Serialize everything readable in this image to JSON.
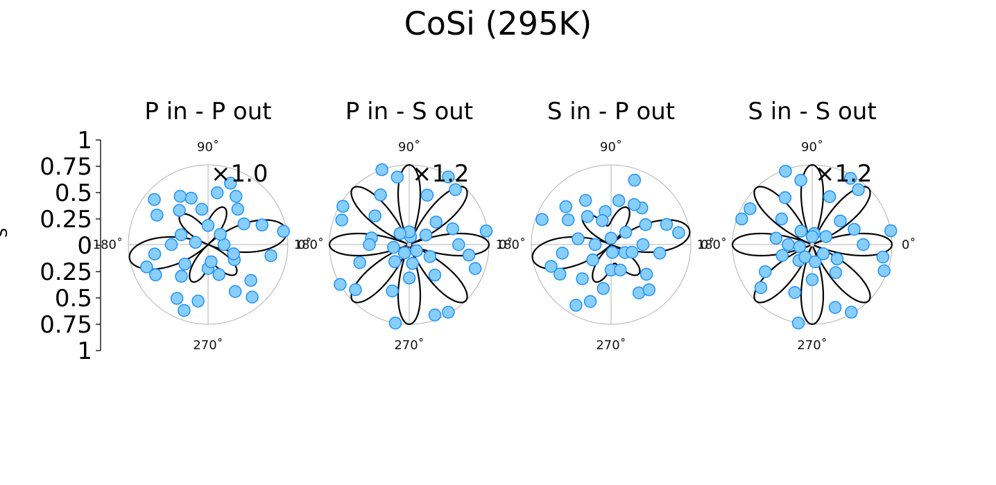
{
  "figure": {
    "title": "CoSi (295K)",
    "ylabel": "S"
  },
  "colors": {
    "marker_fill": "#87cefa",
    "marker_edge": "#1e90ff",
    "fit_line": "#000000",
    "grid": "#b0b0b0"
  },
  "chart_data": {
    "type": "polar-scatter",
    "radial_axis": {
      "ticks": [
        "1",
        "0.75",
        "0.5",
        "0.25",
        "0",
        "0.25",
        "0.5",
        "0.75",
        "1"
      ],
      "range": [
        0,
        1
      ]
    },
    "angle_ticks": [
      "0˚",
      "90˚",
      "180˚",
      "270˚"
    ],
    "grid": true,
    "panels": [
      {
        "title": "P in - P out",
        "scale_label": "×1.0",
        "petals": 8,
        "model": {
          "const": 0.0,
          "amp4": 0.62,
          "amp8": 0.38,
          "phase_deg": 10
        },
        "points": [
          {
            "theta": 0,
            "r": 0.2
          },
          {
            "theta": 10,
            "r": 0.96
          },
          {
            "theta": 20,
            "r": 0.72
          },
          {
            "theta": 30,
            "r": 0.52
          },
          {
            "theta": 40,
            "r": 0.2
          },
          {
            "theta": 50,
            "r": 0.58
          },
          {
            "theta": 60,
            "r": 0.7
          },
          {
            "theta": 70,
            "r": 0.82
          },
          {
            "theta": 80,
            "r": 0.66
          },
          {
            "theta": 90,
            "r": 0.24
          },
          {
            "theta": 100,
            "r": 0.45
          },
          {
            "theta": 110,
            "r": 0.62
          },
          {
            "theta": 120,
            "r": 0.7
          },
          {
            "theta": 130,
            "r": 0.56
          },
          {
            "theta": 140,
            "r": 0.88
          },
          {
            "theta": 150,
            "r": 0.74
          },
          {
            "theta": 160,
            "r": 0.36
          },
          {
            "theta": 170,
            "r": 0.16
          },
          {
            "theta": 180,
            "r": 0.46
          },
          {
            "theta": 190,
            "r": 0.68
          },
          {
            "theta": 200,
            "r": 0.82
          },
          {
            "theta": 210,
            "r": 0.76
          },
          {
            "theta": 220,
            "r": 0.38
          },
          {
            "theta": 230,
            "r": 0.52
          },
          {
            "theta": 240,
            "r": 0.78
          },
          {
            "theta": 250,
            "r": 0.88
          },
          {
            "theta": 260,
            "r": 0.72
          },
          {
            "theta": 270,
            "r": 0.3
          },
          {
            "theta": 280,
            "r": 0.22
          },
          {
            "theta": 290,
            "r": 0.4
          },
          {
            "theta": 300,
            "r": 0.68
          },
          {
            "theta": 310,
            "r": 0.86
          },
          {
            "theta": 320,
            "r": 0.7
          },
          {
            "theta": 330,
            "r": 0.38
          },
          {
            "theta": 340,
            "r": 0.34
          },
          {
            "theta": 350,
            "r": 0.8
          }
        ]
      },
      {
        "title": "P in - S out",
        "scale_label": "×1.2",
        "petals": 8,
        "model": {
          "const": 0.0,
          "amp4": 0.0,
          "amp8": 1.0,
          "phase_deg": 0
        },
        "points": [
          {
            "theta": 0,
            "r": 0.62
          },
          {
            "theta": 10,
            "r": 0.98
          },
          {
            "theta": 20,
            "r": 0.58
          },
          {
            "theta": 30,
            "r": 0.24
          },
          {
            "theta": 40,
            "r": 0.44
          },
          {
            "theta": 50,
            "r": 0.9
          },
          {
            "theta": 60,
            "r": 0.98
          },
          {
            "theta": 70,
            "r": 0.66
          },
          {
            "theta": 80,
            "r": 0.1
          },
          {
            "theta": 90,
            "r": 0.16
          },
          {
            "theta": 100,
            "r": 0.86
          },
          {
            "theta": 110,
            "r": 1.0
          },
          {
            "theta": 120,
            "r": 0.72
          },
          {
            "theta": 130,
            "r": 0.18
          },
          {
            "theta": 140,
            "r": 0.56
          },
          {
            "theta": 150,
            "r": 0.96
          },
          {
            "theta": 160,
            "r": 0.9
          },
          {
            "theta": 170,
            "r": 0.48
          },
          {
            "theta": 180,
            "r": 0.5
          },
          {
            "theta": 190,
            "r": 0.2
          },
          {
            "theta": 200,
            "r": 0.66
          },
          {
            "theta": 210,
            "r": 1.0
          },
          {
            "theta": 220,
            "r": 0.88
          },
          {
            "theta": 230,
            "r": 0.28
          },
          {
            "theta": 240,
            "r": 0.12
          },
          {
            "theta": 250,
            "r": 0.62
          },
          {
            "theta": 260,
            "r": 1.0
          },
          {
            "theta": 270,
            "r": 0.42
          },
          {
            "theta": 280,
            "r": 0.24
          },
          {
            "theta": 290,
            "r": 0.94
          },
          {
            "theta": 300,
            "r": 0.98
          },
          {
            "theta": 310,
            "r": 0.5
          },
          {
            "theta": 320,
            "r": 0.12
          },
          {
            "theta": 330,
            "r": 0.3
          },
          {
            "theta": 340,
            "r": 0.88
          },
          {
            "theta": 350,
            "r": 0.76
          }
        ]
      },
      {
        "title": "S in - P out",
        "scale_label": "",
        "petals": 8,
        "model": {
          "const": 0.0,
          "amp4": 0.62,
          "amp8": 0.38,
          "phase_deg": 10
        },
        "points": [
          {
            "theta": 0,
            "r": 0.4
          },
          {
            "theta": 10,
            "r": 0.86
          },
          {
            "theta": 20,
            "r": 0.74
          },
          {
            "theta": 30,
            "r": 0.5
          },
          {
            "theta": 40,
            "r": 0.24
          },
          {
            "theta": 50,
            "r": 0.6
          },
          {
            "theta": 60,
            "r": 0.58
          },
          {
            "theta": 70,
            "r": 0.86
          },
          {
            "theta": 80,
            "r": 0.56
          },
          {
            "theta": 90,
            "r": 0.08
          },
          {
            "theta": 100,
            "r": 0.42
          },
          {
            "theta": 110,
            "r": 0.32
          },
          {
            "theta": 120,
            "r": 0.64
          },
          {
            "theta": 130,
            "r": 0.46
          },
          {
            "theta": 140,
            "r": 0.74
          },
          {
            "theta": 150,
            "r": 0.62
          },
          {
            "theta": 160,
            "r": 0.92
          },
          {
            "theta": 170,
            "r": 0.42
          },
          {
            "theta": 180,
            "r": 0.2
          },
          {
            "theta": 190,
            "r": 0.62
          },
          {
            "theta": 200,
            "r": 0.8
          },
          {
            "theta": 210,
            "r": 0.74
          },
          {
            "theta": 220,
            "r": 0.3
          },
          {
            "theta": 230,
            "r": 0.56
          },
          {
            "theta": 240,
            "r": 0.88
          },
          {
            "theta": 250,
            "r": 0.76
          },
          {
            "theta": 260,
            "r": 0.56
          },
          {
            "theta": 270,
            "r": 0.32
          },
          {
            "theta": 280,
            "r": 0.1
          },
          {
            "theta": 290,
            "r": 0.34
          },
          {
            "theta": 300,
            "r": 0.7
          },
          {
            "theta": 310,
            "r": 0.74
          },
          {
            "theta": 320,
            "r": 0.58
          },
          {
            "theta": 330,
            "r": 0.2
          },
          {
            "theta": 340,
            "r": 0.28
          },
          {
            "theta": 350,
            "r": 0.62
          }
        ]
      },
      {
        "title": "S in - S out",
        "scale_label": "×1.2",
        "petals": 8,
        "model": {
          "const": 0.0,
          "amp4": 0.0,
          "amp8": 1.0,
          "phase_deg": 0
        },
        "points": [
          {
            "theta": 0,
            "r": 0.64
          },
          {
            "theta": 10,
            "r": 1.0
          },
          {
            "theta": 20,
            "r": 0.56
          },
          {
            "theta": 30,
            "r": 0.2
          },
          {
            "theta": 40,
            "r": 0.46
          },
          {
            "theta": 50,
            "r": 0.9
          },
          {
            "theta": 60,
            "r": 0.96
          },
          {
            "theta": 70,
            "r": 0.64
          },
          {
            "theta": 80,
            "r": 0.14
          },
          {
            "theta": 90,
            "r": 0.1
          },
          {
            "theta": 100,
            "r": 0.82
          },
          {
            "theta": 110,
            "r": 0.98
          },
          {
            "theta": 120,
            "r": 0.68
          },
          {
            "theta": 130,
            "r": 0.22
          },
          {
            "theta": 140,
            "r": 0.5
          },
          {
            "theta": 150,
            "r": 0.9
          },
          {
            "theta": 160,
            "r": 0.94
          },
          {
            "theta": 170,
            "r": 0.46
          },
          {
            "theta": 180,
            "r": 0.3
          },
          {
            "theta": 190,
            "r": 0.16
          },
          {
            "theta": 200,
            "r": 0.4
          },
          {
            "theta": 210,
            "r": 0.68
          },
          {
            "theta": 220,
            "r": 0.84
          },
          {
            "theta": 230,
            "r": 0.26
          },
          {
            "theta": 240,
            "r": 0.18
          },
          {
            "theta": 250,
            "r": 0.64
          },
          {
            "theta": 260,
            "r": 1.0
          },
          {
            "theta": 270,
            "r": 0.44
          },
          {
            "theta": 280,
            "r": 0.22
          },
          {
            "theta": 290,
            "r": 0.84
          },
          {
            "theta": 300,
            "r": 0.98
          },
          {
            "theta": 310,
            "r": 0.46
          },
          {
            "theta": 320,
            "r": 0.18
          },
          {
            "theta": 330,
            "r": 0.36
          },
          {
            "theta": 340,
            "r": 0.96
          },
          {
            "theta": 350,
            "r": 0.9
          }
        ]
      }
    ]
  }
}
